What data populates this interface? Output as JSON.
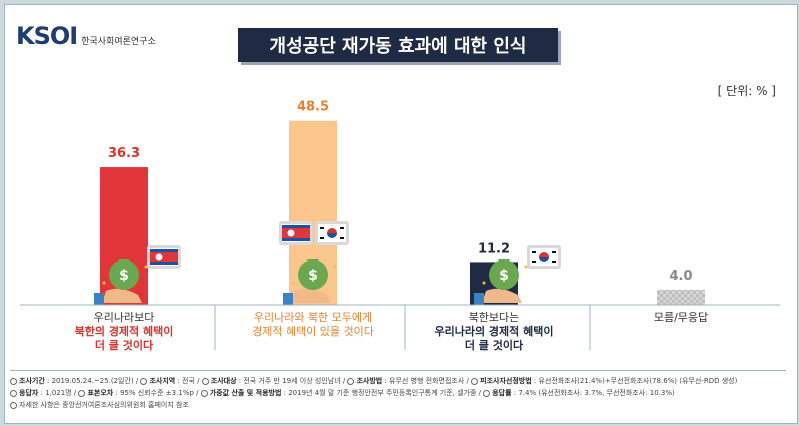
{
  "header": {
    "logo_text": "KSOI",
    "logo_sub": "한국사회여론연구소",
    "title": "개성공단 재가동 효과에 대한 인식",
    "unit": "[ 단위: % ]"
  },
  "colors": {
    "bar_red": "#e0363a",
    "bar_peach": "#fbc68c",
    "bar_navy": "#1f2a44",
    "bar_gray": "#c8c8c8",
    "label_red": "#d9342e",
    "label_orange": "#e6822d",
    "label_navy": "#1f2a44",
    "label_gray": "#888888"
  },
  "chart_data": {
    "type": "bar",
    "title": "개성공단 재가동 효과에 대한 인식",
    "unit": "%",
    "categories": [
      "우리나라보다 북한의 경제적 혜택이 더 클 것이다",
      "우리나라와 북한 모두에게 경제적 혜택이 있을 것이다",
      "북한보다는 우리나라의 경제적 혜택이 더 클 것이다",
      "모름/무응답"
    ],
    "values": [
      36.3,
      48.5,
      11.2,
      4.0
    ],
    "value_labels": [
      "36.3",
      "48.5",
      "11.2",
      "4.0"
    ],
    "ylim": [
      0,
      50
    ],
    "grid": false
  },
  "categories_text": [
    {
      "line1": "우리나라보다",
      "line2": "북한의 경제적 혜택이",
      "line3": "더 클 것이다"
    },
    {
      "line1": "우리나라와 북한 모두에게",
      "line2": "경제적 혜택이 있을 것이다",
      "line3": ""
    },
    {
      "line1": "북한보다는",
      "line2": "우리나라의 경제적 혜택이",
      "line3": "더 클 것이다"
    },
    {
      "line1": "모름/무응답",
      "line2": "",
      "line3": ""
    }
  ],
  "footer": {
    "line1": [
      {
        "label": "조사기간",
        "value": "2019.05.24.~25.(2일간) /"
      },
      {
        "label": "조사지역",
        "value": "전국 /"
      },
      {
        "label": "조사대상",
        "value": "전국 거주 만 19세 이상 성인남녀 /"
      },
      {
        "label": "조사방법",
        "value": "유무선 병행 전화면접조사 /"
      },
      {
        "label": "피조사자선정방법",
        "value": "유선전화조사(21.4%)+무선전화조사(78.6%) (유무선-RDD 생성)"
      }
    ],
    "line2": [
      {
        "label": "응답자",
        "value": "1,021명 /"
      },
      {
        "label": "표본오차",
        "value": "95% 신뢰수준 ±3.1%p /"
      },
      {
        "label": "가중값 산출 및 적용방법",
        "value": "2019년 4월 말 기준 행정안전부 주민등록인구통계 기준, 셀가중 /"
      },
      {
        "label": "응답률",
        "value": "7.4% (유선전화조사: 3.7%, 무선전화조사: 10.3%)"
      }
    ],
    "line3": "자세한 사항은 중앙선거여론조사심의위원회 홈페이지 참조"
  }
}
